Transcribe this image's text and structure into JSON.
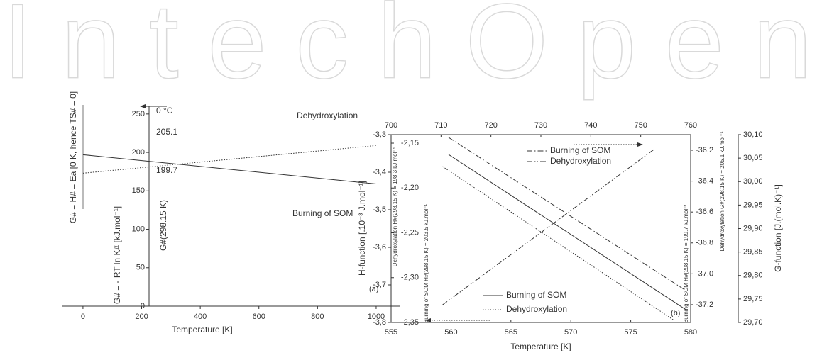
{
  "watermark": "IntechOpen",
  "chart_data": [
    {
      "type": "line",
      "label": "(a)",
      "xlabel": "Temperature [K]",
      "ylabel": [
        "G# = H# = Ea [0 K, hence TS# = 0]",
        "G# = - RT ln K# [kJ.mol⁻¹]"
      ],
      "xlim": [
        -70,
        1080
      ],
      "xticks": [
        0,
        200,
        400,
        600,
        800,
        1000
      ],
      "ylim": [
        0,
        260
      ],
      "yticks": [
        0,
        50,
        100,
        150,
        200,
        250
      ],
      "annotations": [
        "0 °C",
        "205.1",
        "199.7",
        "G#(298.15 K)"
      ],
      "series": [
        {
          "name": "Dehydroxylation",
          "style": "dotted",
          "color": "#333333",
          "x": [
            0,
            1000
          ],
          "values": [
            173,
            209
          ]
        },
        {
          "name": "Burning of SOM",
          "style": "solid",
          "color": "#333333",
          "x": [
            0,
            1000
          ],
          "values": [
            197,
            159
          ]
        }
      ]
    },
    {
      "type": "line",
      "label": "(b)",
      "xlabel": "Temperature [K]",
      "ylabel": "H-function [.10⁻³ J.mol⁻¹]",
      "y4label": "G-function [J.(mol.K)⁻¹]",
      "y3label": [
        "Burning of SOM H#(298.15 K) = 203.5 kJ.mol⁻¹",
        "Dehydroxylation H#(298.15 K) = 198.3 kJ.mol⁻¹"
      ],
      "y2label": [
        "Burning of SOM H#(298.15 K) = 199.7 kJ.mol⁻¹",
        "Dehydroxylation G#(298.15 K) = 205.1 kJ.mol⁻¹"
      ],
      "xlim": [
        555,
        580
      ],
      "xticks": [
        555,
        560,
        565,
        570,
        575,
        580
      ],
      "x2lim": [
        700,
        760
      ],
      "x2ticks": [
        700,
        710,
        720,
        730,
        740,
        750,
        760
      ],
      "ylim": [
        -3.8,
        -3.3
      ],
      "yticks": [
        {
          "value": -3.3,
          "label": "-3,3"
        },
        {
          "value": -3.4,
          "label": "-3,4"
        },
        {
          "value": -3.5,
          "label": "-3,5"
        },
        {
          "value": -3.6,
          "label": "-3,6"
        },
        {
          "value": -3.7,
          "label": "-3,7"
        },
        {
          "value": -3.8,
          "label": "-3,8"
        }
      ],
      "y3lim": [
        -2.35,
        -2.1405
      ],
      "y3ticks": [
        {
          "value": -2.15,
          "label": "-2,15"
        },
        {
          "value": -2.2,
          "label": "-2,20"
        },
        {
          "value": -2.25,
          "label": "-2,25"
        },
        {
          "value": -2.3,
          "label": "-2,30"
        },
        {
          "value": -2.35,
          "label": "-2,35"
        }
      ],
      "y2lim": [
        -37.315,
        -36.099
      ],
      "y2ticks": [
        {
          "value": -36.2,
          "label": "-36,2"
        },
        {
          "value": -36.4,
          "label": "-36,4"
        },
        {
          "value": -36.6,
          "label": "-36,6"
        },
        {
          "value": -36.8,
          "label": "-36,8"
        },
        {
          "value": -37.0,
          "label": "-37,0"
        },
        {
          "value": -37.2,
          "label": "-37,2"
        }
      ],
      "y4lim": [
        29.7,
        30.1
      ],
      "y4ticks": [
        {
          "value": 29.7,
          "label": "29,70"
        },
        {
          "value": 29.75,
          "label": "29,75"
        },
        {
          "value": 29.8,
          "label": "29,80"
        },
        {
          "value": 29.85,
          "label": "29,85"
        },
        {
          "value": 29.9,
          "label": "29,90"
        },
        {
          "value": 29.95,
          "label": "29,95"
        },
        {
          "value": 30.0,
          "label": "30,00"
        },
        {
          "value": 30.05,
          "label": "30,05"
        },
        {
          "value": 30.1,
          "label": "30,10"
        }
      ],
      "series": [
        {
          "name": "Burning of SOM",
          "style": "dashdot",
          "color": "#333333",
          "x": [
            559.8,
            579.6
          ],
          "values": [
            -3.3075,
            -3.715
          ]
        },
        {
          "name": "Dehydroxylation",
          "style": "dashdotdot",
          "color": "#333333",
          "x": [
            559.3,
            577.0
          ],
          "values": [
            -3.753,
            -3.338
          ]
        },
        {
          "name": "Burning of SOM",
          "style": "solid",
          "color": "#333333",
          "x": [
            559.8,
            579.6
          ],
          "values": [
            -3.353,
            -3.766
          ]
        },
        {
          "name": "Dehydroxylation",
          "style": "dotted",
          "color": "#333333",
          "x": [
            559.3,
            578.6
          ],
          "values": [
            -3.385,
            -3.794
          ]
        }
      ]
    }
  ]
}
